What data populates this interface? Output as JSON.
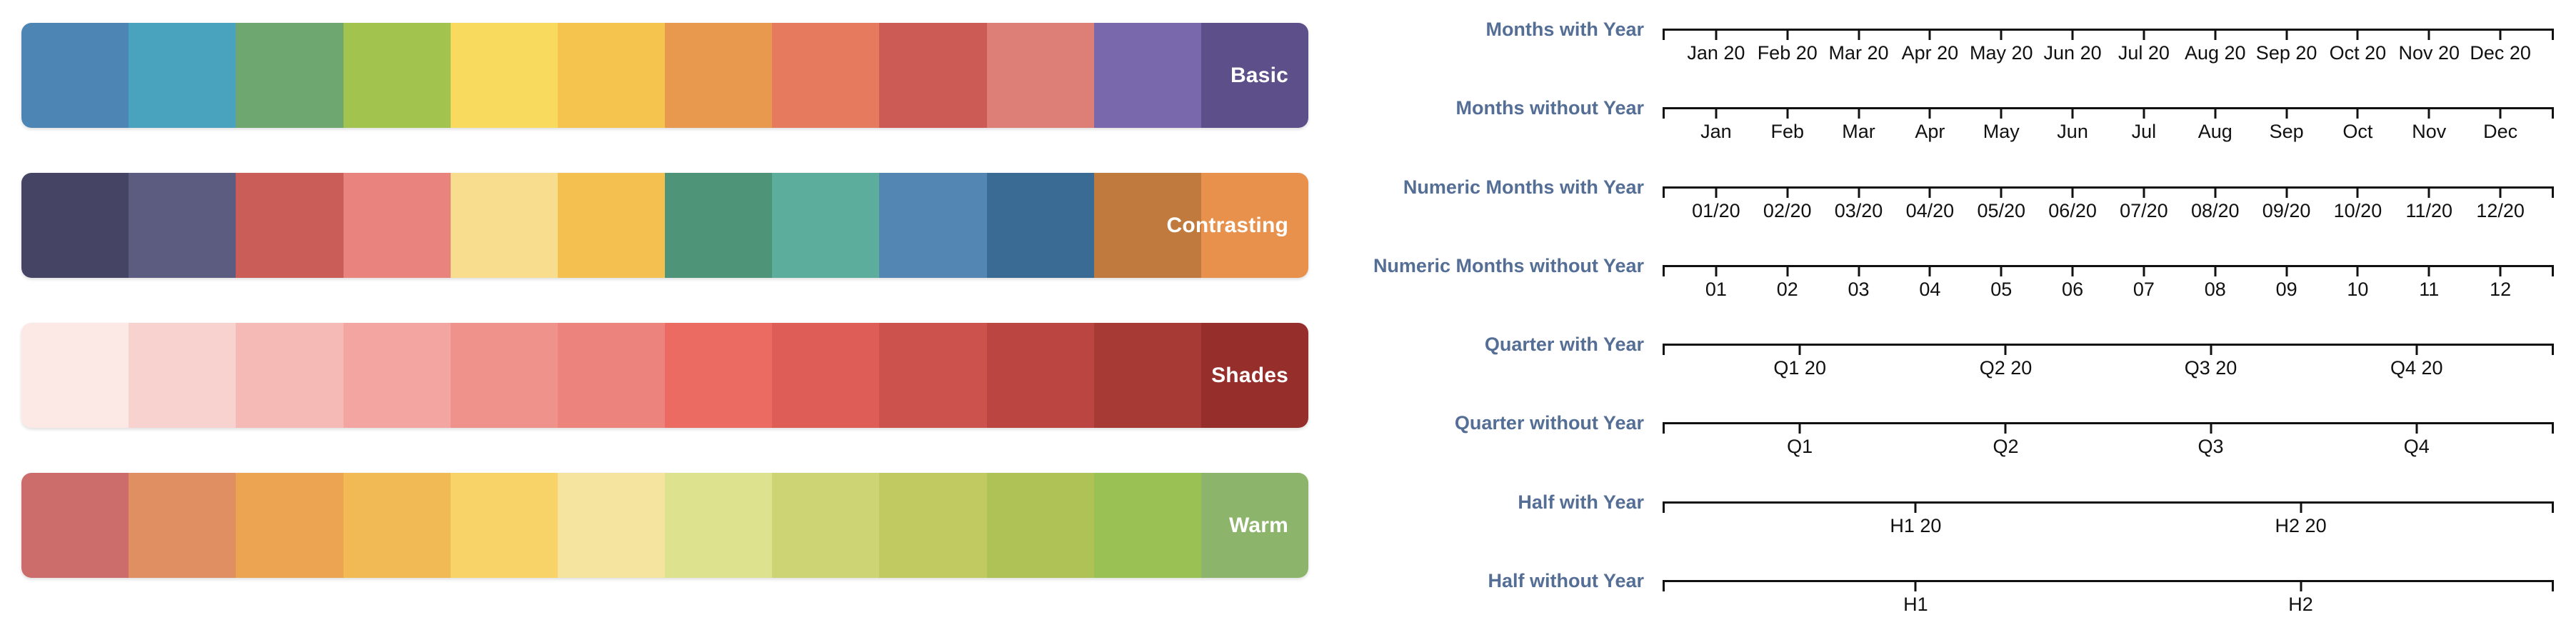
{
  "palettes": [
    {
      "label": "Basic",
      "colors": [
        "#4d86b4",
        "#4aa3be",
        "#6fa770",
        "#a2c44f",
        "#f7da5e",
        "#f5c44f",
        "#e8994e",
        "#e57a5e",
        "#cc5a55",
        "#dd7f76",
        "#7a68ac",
        "#5d4f8a"
      ]
    },
    {
      "label": "Contrasting",
      "colors": [
        "#454465",
        "#5c5b80",
        "#ca5d58",
        "#e8837e",
        "#f8dd8e",
        "#f4c150",
        "#4d9478",
        "#5cad9b",
        "#5486b4",
        "#3a6b94",
        "#c17a3e",
        "#e8914c"
      ]
    },
    {
      "label": "Shades",
      "colors": [
        "#fce8e5",
        "#f8d2ce",
        "#f5bab6",
        "#f2a5a1",
        "#ef928c",
        "#ed837d",
        "#eb6a62",
        "#de5e57",
        "#cc534d",
        "#bb4540",
        "#a83a35",
        "#962f2b"
      ]
    },
    {
      "label": "Warm",
      "colors": [
        "#cc6d6b",
        "#df8f62",
        "#eda452",
        "#f2ba55",
        "#f7d368",
        "#f5e4a0",
        "#dde28f",
        "#cdd473",
        "#c0ca60",
        "#aec256",
        "#9ac153",
        "#8cb46a"
      ]
    }
  ],
  "axis_examples": [
    {
      "label": "Months with Year",
      "tick_labels": [
        "Jan 20",
        "Feb 20",
        "Mar 20",
        "Apr 20",
        "May 20",
        "Jun 20",
        "Jul 20",
        "Aug 20",
        "Sep 20",
        "Oct 20",
        "Nov 20",
        "Dec 20"
      ],
      "tick_positions_pct": [
        6,
        14,
        22,
        30,
        38,
        46,
        54,
        62,
        70,
        78,
        86,
        94
      ]
    },
    {
      "label": "Months without Year",
      "tick_labels": [
        "Jan",
        "Feb",
        "Mar",
        "Apr",
        "May",
        "Jun",
        "Jul",
        "Aug",
        "Sep",
        "Oct",
        "Nov",
        "Dec"
      ],
      "tick_positions_pct": [
        6,
        14,
        22,
        30,
        38,
        46,
        54,
        62,
        70,
        78,
        86,
        94
      ]
    },
    {
      "label": "Numeric Months with Year",
      "tick_labels": [
        "01/20",
        "02/20",
        "03/20",
        "04/20",
        "05/20",
        "06/20",
        "07/20",
        "08/20",
        "09/20",
        "10/20",
        "11/20",
        "12/20"
      ],
      "tick_positions_pct": [
        6,
        14,
        22,
        30,
        38,
        46,
        54,
        62,
        70,
        78,
        86,
        94
      ]
    },
    {
      "label": "Numeric Months without Year",
      "tick_labels": [
        "01",
        "02",
        "03",
        "04",
        "05",
        "06",
        "07",
        "08",
        "09",
        "10",
        "11",
        "12"
      ],
      "tick_positions_pct": [
        6,
        14,
        22,
        30,
        38,
        46,
        54,
        62,
        70,
        78,
        86,
        94
      ]
    },
    {
      "label": "Quarter with Year",
      "tick_labels": [
        "Q1 20",
        "Q2 20",
        "Q3 20",
        "Q4 20"
      ],
      "tick_positions_pct": [
        15.4,
        38.5,
        61.5,
        84.6
      ]
    },
    {
      "label": "Quarter without Year",
      "tick_labels": [
        "Q1",
        "Q2",
        "Q3",
        "Q4"
      ],
      "tick_positions_pct": [
        15.4,
        38.5,
        61.5,
        84.6
      ]
    },
    {
      "label": "Half with Year",
      "tick_labels": [
        "H1 20",
        "H2 20"
      ],
      "tick_positions_pct": [
        28.4,
        71.6
      ]
    },
    {
      "label": "Half without Year",
      "tick_labels": [
        "H1",
        "H2"
      ],
      "tick_positions_pct": [
        28.4,
        71.6
      ]
    }
  ],
  "styles": {
    "background": "#ffffff",
    "axis_label_color": "#546e96",
    "axis_line_color": "#111111",
    "tick_text_color": "#111111",
    "palette_label_color": "#ffffff"
  }
}
